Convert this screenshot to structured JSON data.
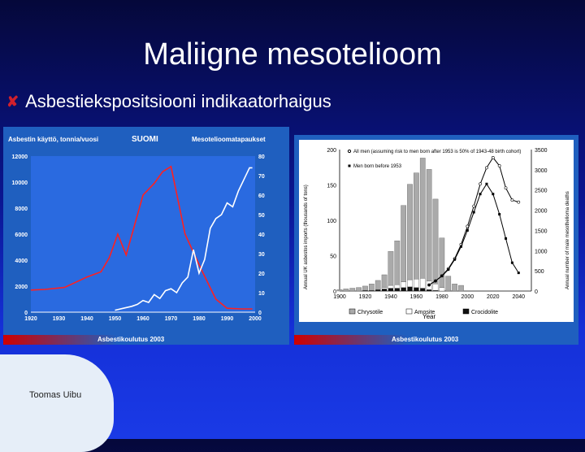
{
  "slide": {
    "title": "Maliigne mesotelioom",
    "bullet": "Asbestiekspositsiooni  indikaatorhaigus",
    "author": "Toomas Uibu"
  },
  "colors": {
    "accent_red": "#d0202c",
    "line_red": "#ff2020",
    "panel_blue": "#1f5fbf"
  },
  "chart_data": [
    {
      "type": "line",
      "title": "SUOMI",
      "ylabel_left": "Asbestin käyttö, tonnia/vuosi",
      "ylabel_right": "Mesotelioomatapaukset",
      "footer": "Asbestikoulutus 2003",
      "xlim": [
        1920,
        2000
      ],
      "xticks": [
        1920,
        1930,
        1940,
        1950,
        1960,
        1970,
        1980,
        1990,
        2000
      ],
      "ylim_left": [
        0,
        12000
      ],
      "yticks_left": [
        0,
        2000,
        4000,
        6000,
        8000,
        10000,
        12000
      ],
      "ylim_right": [
        0,
        80
      ],
      "yticks_right": [
        0,
        10,
        20,
        30,
        40,
        50,
        60,
        70,
        80
      ],
      "series": [
        {
          "color": "#ff2020",
          "axis": "left",
          "x": [
            1920,
            1925,
            1932,
            1936,
            1940,
            1945,
            1948,
            1951,
            1954,
            1960,
            1964,
            1967,
            1970,
            1975,
            1978,
            1981,
            1986,
            1990,
            1995,
            1999
          ],
          "y": [
            1700,
            1750,
            1900,
            2300,
            2700,
            3100,
            4200,
            6000,
            4400,
            9000,
            9900,
            10800,
            11200,
            6000,
            4600,
            3200,
            1000,
            300,
            250,
            250
          ]
        },
        {
          "color": "#ffffff",
          "axis": "right",
          "x": [
            1950,
            1953,
            1956,
            1958,
            1960,
            1962,
            1964,
            1966,
            1968,
            1970,
            1972,
            1974,
            1976,
            1978,
            1980,
            1982,
            1984,
            1986,
            1988,
            1990,
            1992,
            1994,
            1996,
            1998,
            1999
          ],
          "y": [
            1,
            2,
            3,
            4,
            6,
            5,
            9,
            7,
            11,
            12,
            10,
            15,
            18,
            32,
            20,
            27,
            43,
            48,
            50,
            56,
            54,
            62,
            68,
            74,
            74
          ]
        }
      ]
    },
    {
      "type": "bar+line",
      "xlabel": "Year",
      "ylabel_left": "Annual UK asbestos imports (thousands of tons)",
      "ylabel_right": "Annual number of male mesothelioma deaths",
      "footer": "Asbestikoulutus 2003",
      "xlim": [
        1900,
        2050
      ],
      "xticks": [
        1900,
        1920,
        1940,
        1960,
        1980,
        2000,
        2020,
        2040
      ],
      "ylim_left": [
        0,
        200
      ],
      "yticks_left": [
        0,
        50,
        100,
        150,
        200
      ],
      "ylim_right": [
        0,
        3500
      ],
      "yticks_right": [
        0,
        500,
        1000,
        1500,
        2000,
        2500,
        3000,
        3500
      ],
      "legend_top": [
        "All men (assuming risk to men born after 1953 is 50% of 1943-48 birth cohort)",
        "Men born before 1953"
      ],
      "legend_bottom": [
        "Chrysotile",
        "Amosite",
        "Crocidolite"
      ],
      "bars": {
        "x": [
          1900,
          1905,
          1910,
          1915,
          1920,
          1925,
          1930,
          1935,
          1940,
          1945,
          1950,
          1955,
          1960,
          1965,
          1970,
          1975,
          1980,
          1985,
          1990,
          1995
        ],
        "chrysotile": [
          2,
          3,
          4,
          5,
          6,
          9,
          12,
          18,
          48,
          62,
          108,
          135,
          150,
          170,
          158,
          120,
          70,
          20,
          10,
          8
        ],
        "amosite": [
          0,
          0,
          0,
          0,
          0,
          0,
          1,
          2,
          4,
          5,
          8,
          10,
          12,
          14,
          12,
          9,
          5,
          1,
          0,
          0
        ],
        "crocidolite": [
          0,
          0,
          0,
          0,
          1,
          1,
          2,
          3,
          4,
          4,
          5,
          6,
          5,
          4,
          2,
          1,
          0,
          0,
          0,
          0
        ]
      },
      "lines": [
        {
          "name": "All men (assuming risk to men born after 1953 is 50% of 1943-48 birth cohort)",
          "x": [
            1970,
            1975,
            1980,
            1985,
            1990,
            1995,
            2000,
            2005,
            2010,
            2015,
            2020,
            2025,
            2030,
            2035,
            2040
          ],
          "y": [
            150,
            250,
            380,
            550,
            800,
            1150,
            1600,
            2100,
            2650,
            3050,
            3300,
            3100,
            2550,
            2250,
            2200
          ]
        },
        {
          "name": "Men born before 1953",
          "x": [
            1970,
            1975,
            1980,
            1985,
            1990,
            1995,
            2000,
            2005,
            2010,
            2015,
            2020,
            2025,
            2030,
            2035,
            2040
          ],
          "y": [
            150,
            250,
            370,
            530,
            780,
            1100,
            1500,
            1950,
            2400,
            2650,
            2400,
            1900,
            1300,
            700,
            450
          ]
        }
      ]
    }
  ]
}
